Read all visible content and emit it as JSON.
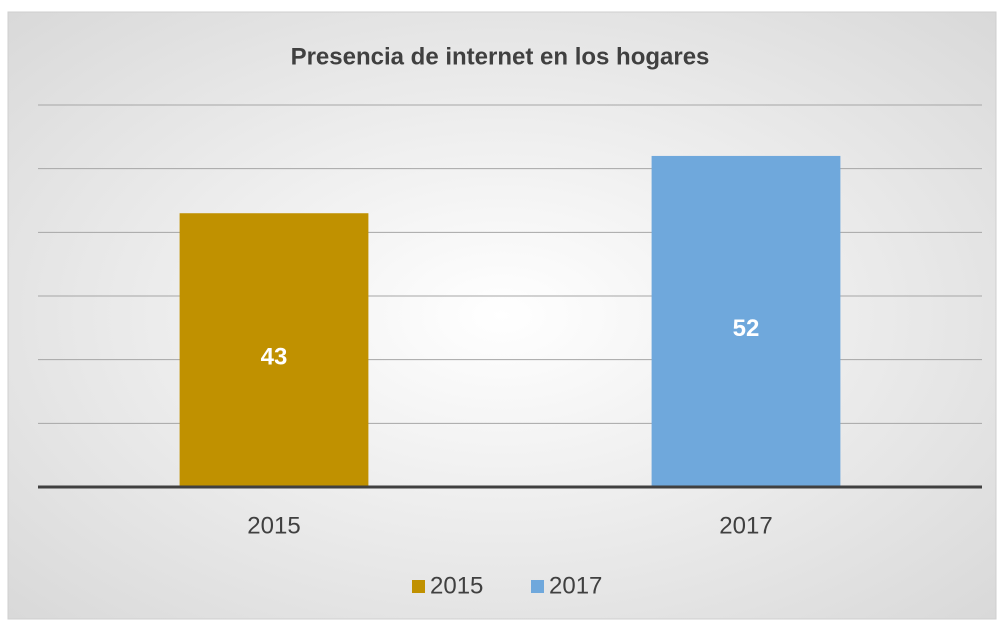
{
  "chart_data": {
    "type": "bar",
    "title": "Presencia de internet en los hogares",
    "categories": [
      "2015",
      "2017"
    ],
    "values": [
      43,
      52
    ],
    "colors": [
      "#c09100",
      "#6fa8dc"
    ],
    "ylim": [
      0,
      60
    ],
    "yticks": [
      0,
      10,
      20,
      30,
      40,
      50,
      60
    ],
    "grid": true,
    "legend": "bottom"
  }
}
